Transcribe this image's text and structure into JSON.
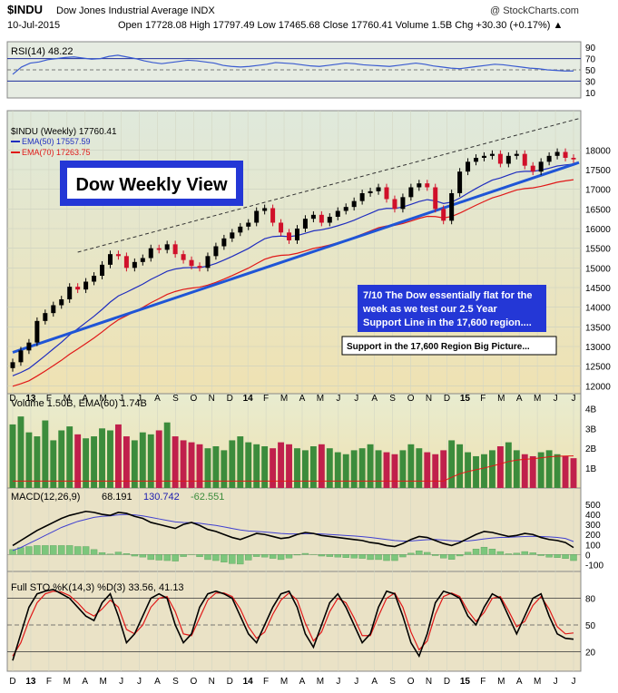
{
  "header": {
    "symbol": "$INDU",
    "name": "Dow Jones Industrial Average INDX",
    "brand": "@ StockCharts.com",
    "date": "10-Jul-2015",
    "quote": "Open 17728.08  High 17797.49  Low 17465.68  Close 17760.41  Volume 1.5B  Chg +30.30 (+0.17%) ▲"
  },
  "colors": {
    "up": "#000000",
    "down": "#d0102a",
    "vol_up": "#3c8c3c",
    "vol_down": "#c0204c",
    "ema50": "#1f2dbf",
    "ema70": "#e01818",
    "trend": "#1f55d6",
    "rsi": "#3a5bd0",
    "macd": "#000000",
    "signal": "#4040d0",
    "histogram": "#7cc67c",
    "stoK": "#000000",
    "stoD": "#e01818",
    "box_border": "#2020c0",
    "box_fill": "#2437d6",
    "panel_bg_top": "#dde8dc",
    "panel_bg_bottom": "#ece1b4"
  },
  "annotations": {
    "title_box": "Dow Weekly View",
    "note_line1": "7/10  The Dow essentially flat for the",
    "note_line2": "week as we test our 2.5 Year",
    "note_line3": "Support Line in the 17,600 region....",
    "support_note": "Support in the 17,600 Region Big Picture..."
  },
  "chart_data": [
    {
      "panel": "rsi",
      "type": "line",
      "label": "RSI(14) 48.22",
      "ylim": [
        0,
        100
      ],
      "ticks": [
        "90",
        "70",
        "50",
        "30",
        "10"
      ],
      "values": [
        42,
        55,
        62,
        64,
        68,
        70,
        72,
        73,
        71,
        69,
        70,
        74,
        76,
        73,
        70,
        66,
        63,
        61,
        63,
        65,
        67,
        66,
        64,
        62,
        58,
        56,
        55,
        56,
        58,
        60,
        63,
        62,
        61,
        59,
        57,
        56,
        58,
        60,
        62,
        61,
        59,
        58,
        57,
        56,
        58,
        60,
        62,
        60,
        57,
        55,
        53,
        52,
        54,
        56,
        58,
        60,
        59,
        57,
        55,
        53,
        52,
        50,
        49,
        48,
        48
      ]
    },
    {
      "panel": "price",
      "type": "line",
      "series_labels": [
        "$INDU (Weekly) 17760.41",
        "EMA(50) 17557.59",
        "EMA(70) 17263.75"
      ],
      "ylim": [
        11800,
        19000
      ],
      "ticks": [
        "18000",
        "17500",
        "17000",
        "16500",
        "16000",
        "15500",
        "15000",
        "14500",
        "14000",
        "13500",
        "13000",
        "12500",
        "12000"
      ],
      "x_ticks": [
        "D",
        "13",
        "F",
        "M",
        "A",
        "M",
        "J",
        "J",
        "A",
        "S",
        "O",
        "N",
        "D",
        "14",
        "F",
        "M",
        "A",
        "M",
        "J",
        "J",
        "A",
        "S",
        "O",
        "N",
        "D",
        "15",
        "F",
        "M",
        "A",
        "M",
        "J",
        "J"
      ],
      "close": [
        12600,
        12900,
        13100,
        13650,
        13850,
        14050,
        14200,
        14520,
        14450,
        14650,
        14800,
        15080,
        15350,
        15300,
        15000,
        15150,
        15250,
        15500,
        15460,
        15600,
        15350,
        15200,
        15050,
        15000,
        15300,
        15550,
        15750,
        15900,
        16050,
        16150,
        16450,
        16520,
        16150,
        15900,
        15700,
        16000,
        16250,
        16350,
        16150,
        16300,
        16450,
        16550,
        16700,
        16900,
        16950,
        17050,
        16750,
        16500,
        16800,
        17050,
        17150,
        17050,
        16500,
        16200,
        16900,
        17450,
        17700,
        17800,
        17850,
        17900,
        17650,
        17850,
        17900,
        17600,
        17450,
        17700,
        17850,
        17950,
        17800,
        17760
      ],
      "trend_line": {
        "start": [
          0,
          12850
        ],
        "end": [
          69,
          17600
        ]
      },
      "resistance_line": {
        "start": [
          8,
          15400
        ],
        "end": [
          69,
          18800
        ]
      }
    },
    {
      "panel": "volume",
      "type": "bar",
      "label": "Volume 1.50B, EMA(60) 1.74B",
      "ylim": [
        0,
        4
      ],
      "ticks": [
        "4B",
        "3B",
        "2B",
        "1B"
      ],
      "values": [
        3.2,
        3.6,
        2.8,
        2.6,
        3.4,
        2.4,
        2.9,
        3.1,
        2.7,
        2.5,
        2.6,
        3.0,
        2.9,
        3.2,
        2.6,
        2.4,
        2.8,
        2.7,
        2.9,
        3.3,
        2.6,
        2.4,
        2.3,
        2.2,
        2.0,
        2.1,
        1.9,
        2.4,
        2.6,
        2.3,
        2.2,
        2.1,
        2.0,
        2.3,
        2.2,
        2.0,
        1.9,
        2.1,
        2.2,
        2.0,
        1.8,
        1.7,
        1.9,
        2.0,
        2.2,
        1.9,
        1.8,
        1.7,
        1.9,
        2.2,
        2.0,
        1.8,
        1.7,
        1.9,
        2.4,
        2.2,
        1.8,
        1.6,
        1.7,
        1.9,
        2.1,
        2.3,
        1.9,
        1.7,
        1.6,
        1.8,
        1.9,
        1.7,
        1.6,
        1.5
      ]
    },
    {
      "panel": "macd",
      "type": "line",
      "label": "MACD(12,26,9)",
      "values_text": [
        "68.191",
        "130.742",
        "-62.551"
      ],
      "ylim": [
        -150,
        500
      ],
      "ticks": [
        "500",
        "400",
        "300",
        "200",
        "100",
        "0",
        "-100"
      ],
      "macd": [
        90,
        140,
        190,
        240,
        280,
        320,
        360,
        390,
        410,
        430,
        420,
        400,
        390,
        420,
        410,
        380,
        360,
        320,
        300,
        280,
        260,
        300,
        320,
        290,
        250,
        230,
        200,
        170,
        150,
        180,
        210,
        200,
        180,
        160,
        170,
        200,
        220,
        210,
        190,
        180,
        170,
        160,
        150,
        140,
        120,
        110,
        90,
        80,
        110,
        150,
        180,
        170,
        140,
        110,
        90,
        120,
        160,
        200,
        230,
        220,
        200,
        180,
        190,
        210,
        200,
        170,
        150,
        140,
        120,
        70
      ],
      "signal": [
        40,
        70,
        110,
        150,
        190,
        230,
        270,
        300,
        330,
        350,
        370,
        380,
        385,
        395,
        400,
        395,
        385,
        370,
        355,
        340,
        325,
        320,
        318,
        312,
        300,
        290,
        275,
        260,
        245,
        235,
        230,
        225,
        218,
        210,
        205,
        205,
        208,
        208,
        205,
        200,
        195,
        190,
        185,
        178,
        170,
        160,
        150,
        140,
        134,
        136,
        142,
        148,
        150,
        145,
        138,
        134,
        136,
        145,
        156,
        165,
        170,
        172,
        176,
        180,
        182,
        180,
        176,
        170,
        160,
        130
      ]
    },
    {
      "panel": "sto",
      "type": "line",
      "label": "Full STO %K(14,3) %D(3) 33.56, 41.13",
      "ylim": [
        0,
        100
      ],
      "ticks": [
        "80",
        "50",
        "20"
      ],
      "k": [
        10,
        40,
        70,
        85,
        88,
        90,
        85,
        80,
        70,
        60,
        55,
        75,
        85,
        60,
        30,
        40,
        60,
        80,
        85,
        80,
        50,
        30,
        40,
        70,
        85,
        88,
        85,
        80,
        60,
        40,
        30,
        50,
        70,
        85,
        88,
        70,
        40,
        25,
        50,
        75,
        85,
        70,
        50,
        30,
        40,
        70,
        88,
        85,
        60,
        30,
        15,
        40,
        75,
        88,
        85,
        80,
        60,
        50,
        70,
        85,
        80,
        60,
        40,
        60,
        80,
        85,
        60,
        40,
        35,
        34
      ],
      "d": [
        15,
        30,
        55,
        75,
        85,
        88,
        87,
        83,
        75,
        65,
        60,
        68,
        78,
        70,
        45,
        40,
        50,
        70,
        80,
        82,
        65,
        40,
        38,
        58,
        78,
        86,
        86,
        82,
        68,
        48,
        35,
        42,
        62,
        78,
        86,
        78,
        52,
        32,
        42,
        65,
        80,
        75,
        58,
        38,
        38,
        60,
        80,
        86,
        70,
        42,
        22,
        32,
        62,
        82,
        86,
        82,
        66,
        54,
        64,
        80,
        82,
        66,
        48,
        54,
        72,
        82,
        68,
        48,
        40,
        41
      ]
    }
  ]
}
